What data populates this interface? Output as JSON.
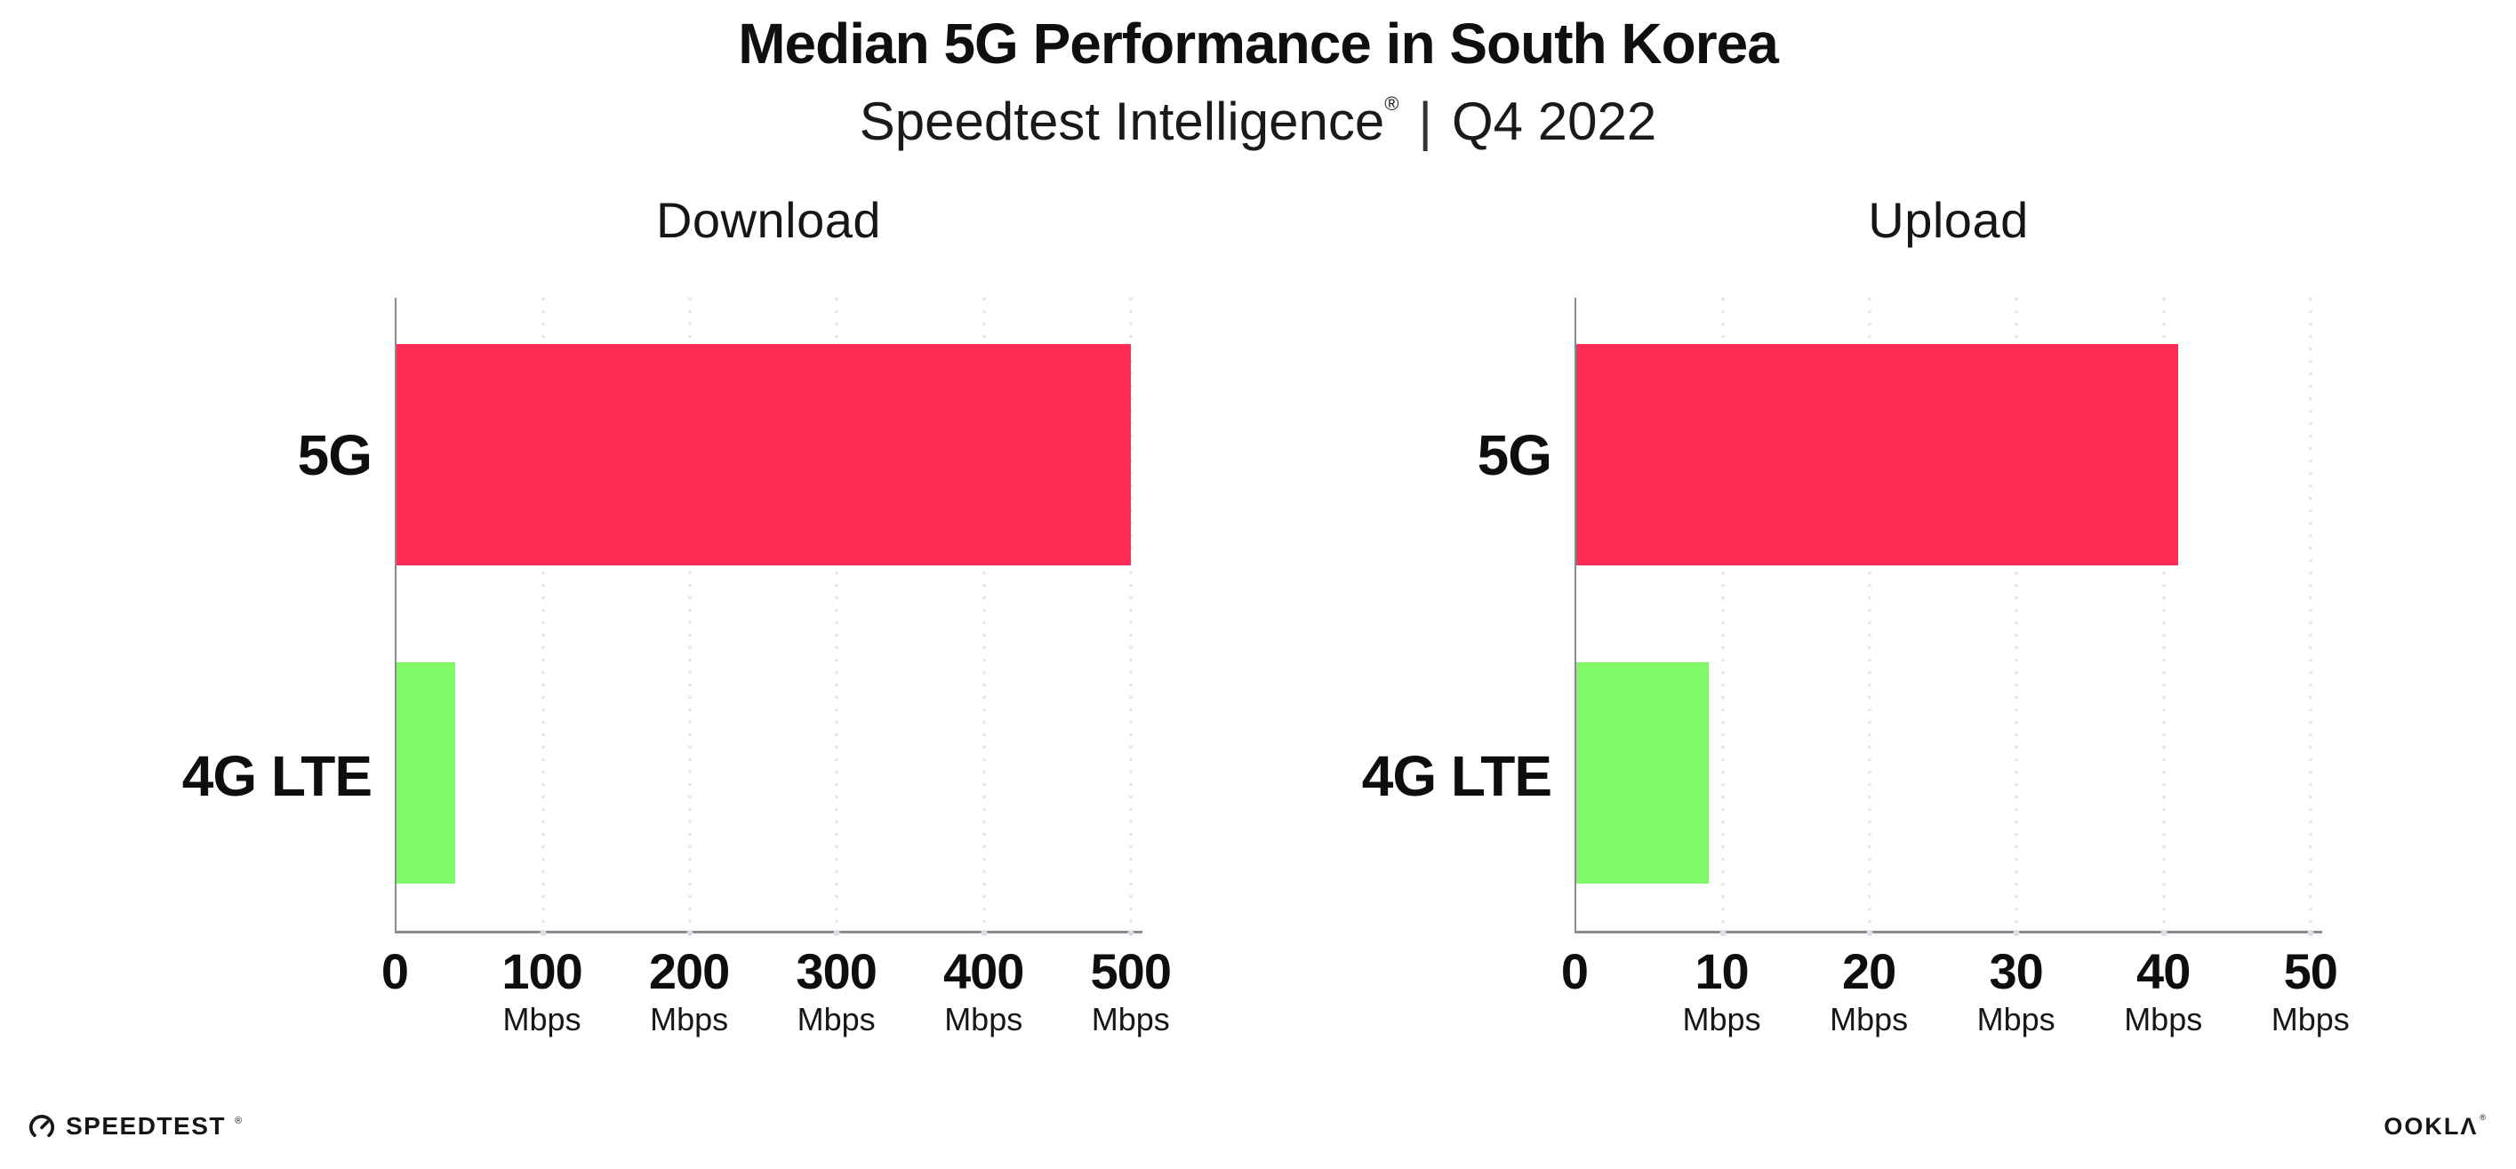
{
  "header": {
    "title": "Median 5G Performance in South Korea",
    "subtitle_brand": "Speedtest Intelligence",
    "registered_mark": "®",
    "subtitle_separator": "|",
    "subtitle_period": "Q4 2022"
  },
  "chart_data": [
    {
      "type": "bar",
      "orientation": "horizontal",
      "title": "Download",
      "categories": [
        "5G",
        "4G LTE"
      ],
      "values": [
        500,
        40
      ],
      "unit": "Mbps",
      "xlim": [
        0,
        508
      ],
      "xticks": [
        0,
        100,
        200,
        300,
        400,
        500
      ],
      "bar_colors": [
        "#FF2D55",
        "#7FFA66"
      ],
      "grid": "vertical-dotted",
      "legend": "none"
    },
    {
      "type": "bar",
      "orientation": "horizontal",
      "title": "Upload",
      "categories": [
        "5G",
        "4G LTE"
      ],
      "values": [
        41,
        9
      ],
      "unit": "Mbps",
      "xlim": [
        0,
        50.8
      ],
      "xticks": [
        0,
        10,
        20,
        30,
        40,
        50
      ],
      "bar_colors": [
        "#FF2D55",
        "#7FFA66"
      ],
      "grid": "vertical-dotted",
      "legend": "none"
    }
  ],
  "footer": {
    "speedtest_logo_text": "SPEEDTEST",
    "speedtest_registered": "®",
    "ookla_logo_text": "OOKLΛ",
    "ookla_registered": "®"
  },
  "colors": {
    "bar_5g": "#FF2D55",
    "bar_4g_lte": "#7FFA66",
    "axis": "#8A8A8F",
    "gridline": "#E1E2EA",
    "text": "#111111"
  }
}
